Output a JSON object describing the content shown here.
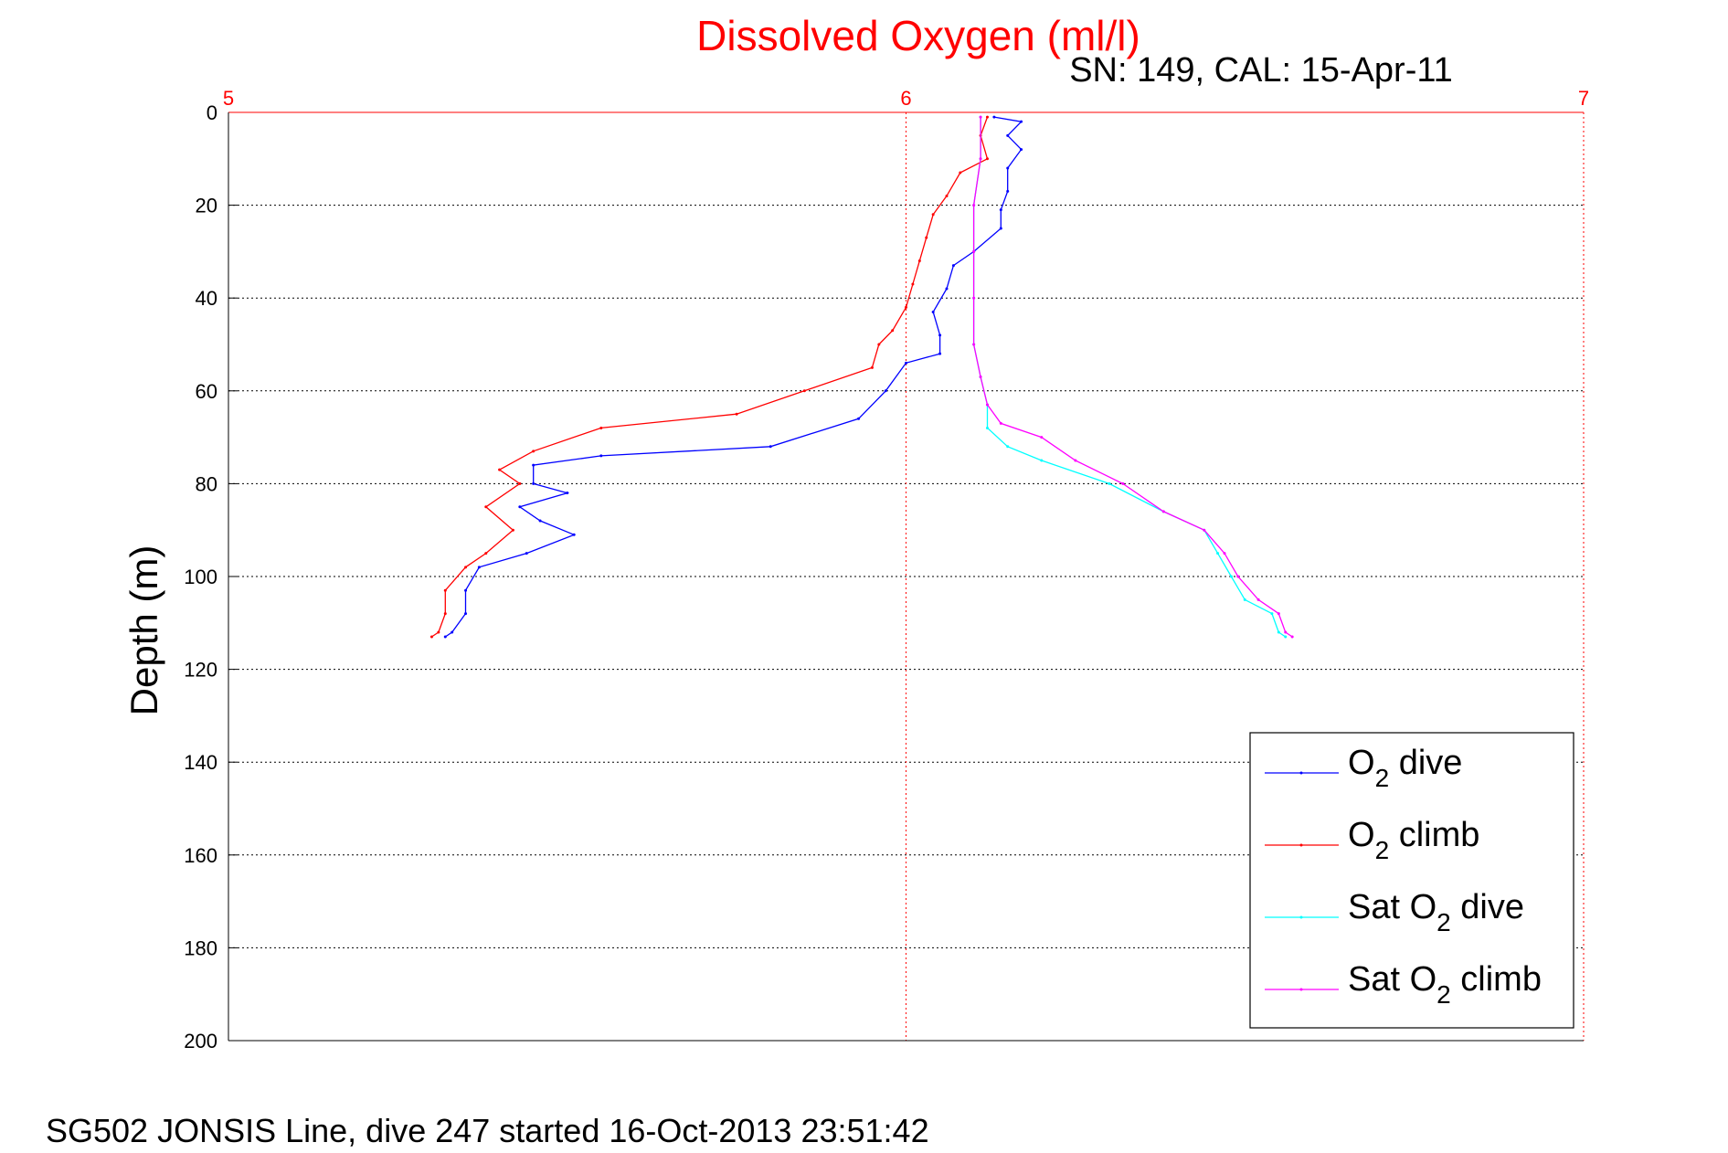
{
  "chart_data": {
    "type": "line",
    "title": "Dissolved Oxygen (ml/l)",
    "subtitle": "SN: 149, CAL: 15-Apr-11",
    "xlabel": "",
    "ylabel": "Depth (m)",
    "xlim": [
      5,
      7
    ],
    "ylim": [
      0,
      200
    ],
    "y_reversed": true,
    "x_axis_position": "top",
    "xticks": [
      "5",
      "6",
      "7"
    ],
    "yticks": [
      "0",
      "20",
      "40",
      "60",
      "80",
      "100",
      "120",
      "140",
      "160",
      "180",
      "200"
    ],
    "grid": true,
    "legend_position": "lower-right",
    "footer": "SG502 JONSIS Line, dive 247 started 16-Oct-2013 23:51:42",
    "series": [
      {
        "legend_main": "O",
        "legend_sub": "2",
        "legend_tail": " dive",
        "color": "#0000ff",
        "points": [
          [
            6.13,
            1
          ],
          [
            6.17,
            2
          ],
          [
            6.15,
            5
          ],
          [
            6.17,
            8
          ],
          [
            6.15,
            12
          ],
          [
            6.15,
            17
          ],
          [
            6.14,
            21
          ],
          [
            6.14,
            25
          ],
          [
            6.1,
            30
          ],
          [
            6.07,
            33
          ],
          [
            6.06,
            38
          ],
          [
            6.04,
            43
          ],
          [
            6.05,
            48
          ],
          [
            6.05,
            52
          ],
          [
            6.0,
            54
          ],
          [
            5.97,
            60
          ],
          [
            5.93,
            66
          ],
          [
            5.8,
            72
          ],
          [
            5.55,
            74
          ],
          [
            5.45,
            76
          ],
          [
            5.45,
            80
          ],
          [
            5.5,
            82
          ],
          [
            5.43,
            85
          ],
          [
            5.46,
            88
          ],
          [
            5.51,
            91
          ],
          [
            5.44,
            95
          ],
          [
            5.37,
            98
          ],
          [
            5.35,
            103
          ],
          [
            5.35,
            108
          ],
          [
            5.33,
            112
          ],
          [
            5.32,
            113
          ]
        ]
      },
      {
        "legend_main": "O",
        "legend_sub": "2",
        "legend_tail": " climb",
        "color": "#ff0000",
        "points": [
          [
            6.12,
            1
          ],
          [
            6.11,
            5
          ],
          [
            6.12,
            10
          ],
          [
            6.08,
            13
          ],
          [
            6.06,
            18
          ],
          [
            6.04,
            22
          ],
          [
            6.03,
            27
          ],
          [
            6.02,
            32
          ],
          [
            6.01,
            37
          ],
          [
            6.0,
            42
          ],
          [
            5.98,
            47
          ],
          [
            5.96,
            50
          ],
          [
            5.95,
            55
          ],
          [
            5.85,
            60
          ],
          [
            5.75,
            65
          ],
          [
            5.55,
            68
          ],
          [
            5.45,
            73
          ],
          [
            5.4,
            77
          ],
          [
            5.43,
            80
          ],
          [
            5.38,
            85
          ],
          [
            5.42,
            90
          ],
          [
            5.38,
            95
          ],
          [
            5.35,
            98
          ],
          [
            5.32,
            103
          ],
          [
            5.32,
            108
          ],
          [
            5.31,
            112
          ],
          [
            5.3,
            113
          ]
        ]
      },
      {
        "legend_main": "Sat O",
        "legend_sub": "2",
        "legend_tail": " dive",
        "color": "#00ffff",
        "points": [
          [
            6.11,
            1
          ],
          [
            6.11,
            10
          ],
          [
            6.1,
            20
          ],
          [
            6.1,
            30
          ],
          [
            6.1,
            40
          ],
          [
            6.1,
            50
          ],
          [
            6.11,
            57
          ],
          [
            6.12,
            63
          ],
          [
            6.12,
            68
          ],
          [
            6.15,
            72
          ],
          [
            6.2,
            75
          ],
          [
            6.3,
            80
          ],
          [
            6.38,
            86
          ],
          [
            6.44,
            90
          ],
          [
            6.46,
            95
          ],
          [
            6.48,
            100
          ],
          [
            6.5,
            105
          ],
          [
            6.54,
            108
          ],
          [
            6.55,
            112
          ],
          [
            6.56,
            113
          ]
        ]
      },
      {
        "legend_main": "Sat O",
        "legend_sub": "2",
        "legend_tail": " climb",
        "color": "#ff00ff",
        "points": [
          [
            6.11,
            1
          ],
          [
            6.11,
            10
          ],
          [
            6.1,
            20
          ],
          [
            6.1,
            30
          ],
          [
            6.1,
            40
          ],
          [
            6.1,
            50
          ],
          [
            6.11,
            57
          ],
          [
            6.12,
            63
          ],
          [
            6.14,
            67
          ],
          [
            6.2,
            70
          ],
          [
            6.25,
            75
          ],
          [
            6.32,
            80
          ],
          [
            6.38,
            86
          ],
          [
            6.44,
            90
          ],
          [
            6.47,
            95
          ],
          [
            6.49,
            100
          ],
          [
            6.52,
            105
          ],
          [
            6.55,
            108
          ],
          [
            6.56,
            112
          ],
          [
            6.57,
            113
          ]
        ]
      }
    ]
  }
}
